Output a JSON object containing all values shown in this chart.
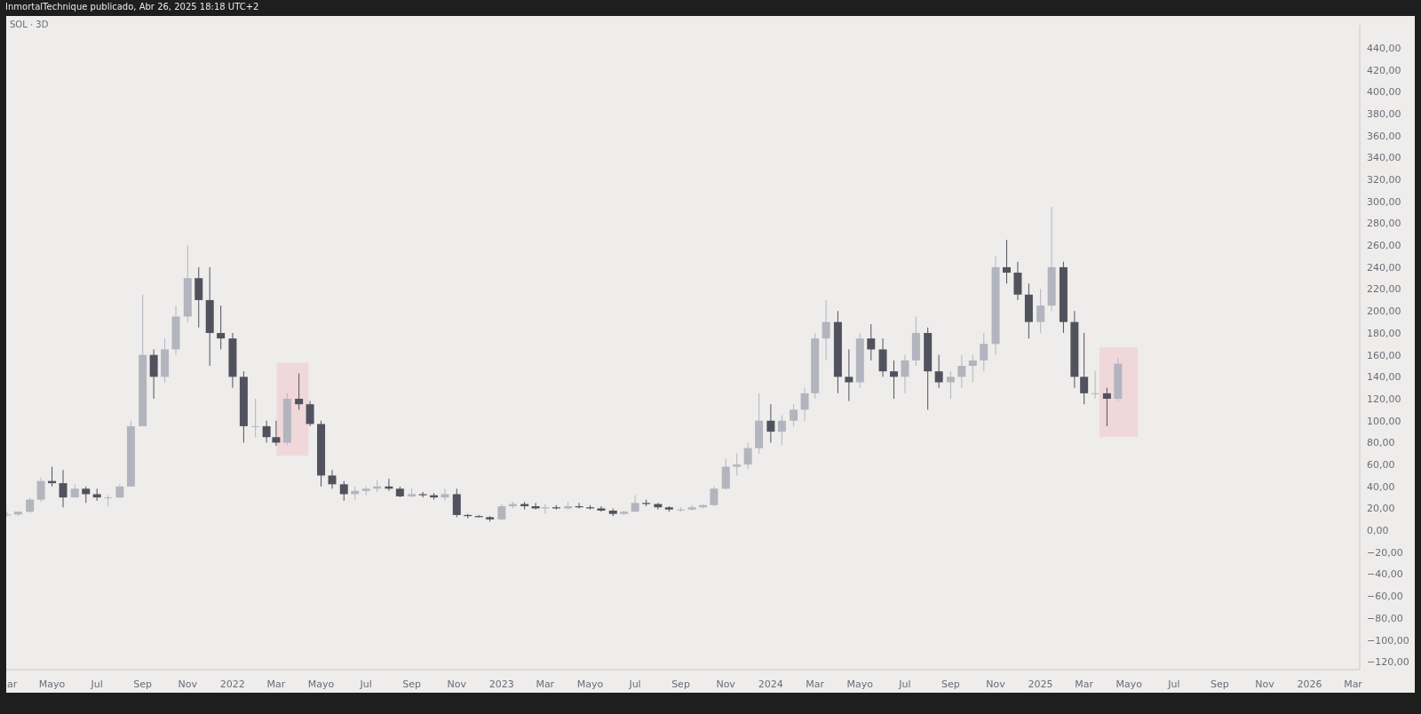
{
  "chart_data": {
    "type": "candlestick",
    "title": "SOL · 3D",
    "annotations": [
      "InmortalTechnique publicado, Abr 26, 2025 18:18 UTC+2"
    ],
    "x": [
      "2021-03-01",
      "2021-03-16",
      "2021-04-01",
      "2021-04-16",
      "2021-05-01",
      "2021-05-16",
      "2021-06-01",
      "2021-06-16",
      "2021-07-01",
      "2021-07-16",
      "2021-08-01",
      "2021-08-16",
      "2021-09-01",
      "2021-09-16",
      "2021-10-01",
      "2021-10-16",
      "2021-11-01",
      "2021-11-16",
      "2021-12-01",
      "2021-12-16",
      "2022-01-01",
      "2022-01-16",
      "2022-02-01",
      "2022-02-16",
      "2022-03-01",
      "2022-03-16",
      "2022-04-01",
      "2022-04-16",
      "2022-05-01",
      "2022-05-16",
      "2022-06-01",
      "2022-06-16",
      "2022-07-01",
      "2022-07-16",
      "2022-08-01",
      "2022-08-16",
      "2022-09-01",
      "2022-09-16",
      "2022-10-01",
      "2022-10-16",
      "2022-11-01",
      "2022-11-16",
      "2022-12-01",
      "2022-12-16",
      "2023-01-01",
      "2023-01-16",
      "2023-02-01",
      "2023-02-16",
      "2023-03-01",
      "2023-03-16",
      "2023-04-01",
      "2023-04-16",
      "2023-05-01",
      "2023-05-16",
      "2023-06-01",
      "2023-06-16",
      "2023-07-01",
      "2023-07-16",
      "2023-08-01",
      "2023-08-16",
      "2023-09-01",
      "2023-09-16",
      "2023-10-01",
      "2023-10-16",
      "2023-11-01",
      "2023-11-16",
      "2023-12-01",
      "2023-12-16",
      "2024-01-01",
      "2024-01-16",
      "2024-02-01",
      "2024-02-16",
      "2024-03-01",
      "2024-03-16",
      "2024-04-01",
      "2024-04-16",
      "2024-05-01",
      "2024-05-16",
      "2024-06-01",
      "2024-06-16",
      "2024-07-01",
      "2024-07-16",
      "2024-08-01",
      "2024-08-16",
      "2024-09-01",
      "2024-09-16",
      "2024-10-01",
      "2024-10-16",
      "2024-11-01",
      "2024-11-16",
      "2024-12-01",
      "2024-12-16",
      "2025-01-01",
      "2025-01-16",
      "2025-02-01",
      "2025-02-16",
      "2025-03-01",
      "2025-03-16",
      "2025-04-01",
      "2025-04-16"
    ],
    "ohlc": [
      [
        14,
        17,
        13,
        14.5
      ],
      [
        14.5,
        17,
        13,
        17
      ],
      [
        17,
        30,
        16,
        28
      ],
      [
        28,
        48,
        26,
        45
      ],
      [
        45,
        58,
        40,
        43
      ],
      [
        43,
        55,
        21,
        30
      ],
      [
        30,
        42,
        30,
        38
      ],
      [
        38,
        40,
        25,
        33
      ],
      [
        33,
        38,
        27,
        30
      ],
      [
        30,
        32,
        22,
        30
      ],
      [
        30,
        42,
        29,
        40
      ],
      [
        40,
        100,
        40,
        95
      ],
      [
        95,
        215,
        95,
        160
      ],
      [
        160,
        165,
        120,
        140
      ],
      [
        140,
        175,
        135,
        165
      ],
      [
        165,
        205,
        160,
        195
      ],
      [
        195,
        260,
        190,
        230
      ],
      [
        230,
        240,
        185,
        210
      ],
      [
        210,
        240,
        150,
        180
      ],
      [
        180,
        205,
        165,
        175
      ],
      [
        175,
        180,
        130,
        140
      ],
      [
        140,
        145,
        80,
        95
      ],
      [
        95,
        120,
        85,
        95
      ],
      [
        95,
        100,
        80,
        85
      ],
      [
        85,
        100,
        77,
        80
      ],
      [
        80,
        125,
        78,
        120
      ],
      [
        120,
        143,
        110,
        115
      ],
      [
        115,
        118,
        95,
        97
      ],
      [
        97,
        100,
        40,
        50
      ],
      [
        50,
        55,
        38,
        42
      ],
      [
        42,
        45,
        27,
        33
      ],
      [
        33,
        40,
        28,
        36
      ],
      [
        36,
        40,
        32,
        38
      ],
      [
        38,
        46,
        35,
        40
      ],
      [
        40,
        47,
        36,
        38
      ],
      [
        38,
        40,
        30,
        31
      ],
      [
        31,
        38,
        30,
        33
      ],
      [
        33,
        35,
        30,
        32
      ],
      [
        32,
        34,
        28,
        30
      ],
      [
        30,
        38,
        27,
        33
      ],
      [
        33,
        38,
        12,
        14
      ],
      [
        14,
        15,
        11,
        13
      ],
      [
        13,
        14,
        12,
        12
      ],
      [
        12,
        13,
        8,
        10
      ],
      [
        10,
        24,
        9,
        22
      ],
      [
        22,
        26,
        20,
        24
      ],
      [
        24,
        26,
        19,
        22
      ],
      [
        22,
        25,
        19,
        20
      ],
      [
        20,
        24,
        15,
        21
      ],
      [
        21,
        23,
        19,
        20
      ],
      [
        20,
        26,
        19,
        22
      ],
      [
        22,
        25,
        20,
        21
      ],
      [
        21,
        23,
        19,
        20
      ],
      [
        20,
        22,
        17,
        18
      ],
      [
        18,
        20,
        13,
        15
      ],
      [
        15,
        18,
        14,
        17
      ],
      [
        17,
        32,
        17,
        25
      ],
      [
        25,
        28,
        22,
        24
      ],
      [
        24,
        25,
        19,
        21
      ],
      [
        21,
        22,
        17,
        19
      ],
      [
        19,
        21,
        17,
        19
      ],
      [
        19,
        23,
        18,
        21
      ],
      [
        21,
        24,
        20,
        23
      ],
      [
        23,
        40,
        22,
        38
      ],
      [
        38,
        65,
        37,
        58
      ],
      [
        58,
        70,
        50,
        60
      ],
      [
        60,
        80,
        56,
        75
      ],
      [
        75,
        125,
        70,
        100
      ],
      [
        100,
        115,
        80,
        90
      ],
      [
        90,
        105,
        78,
        100
      ],
      [
        100,
        115,
        95,
        110
      ],
      [
        110,
        130,
        100,
        125
      ],
      [
        125,
        180,
        120,
        175
      ],
      [
        175,
        210,
        155,
        190
      ],
      [
        190,
        200,
        125,
        140
      ],
      [
        140,
        165,
        118,
        135
      ],
      [
        135,
        180,
        130,
        175
      ],
      [
        175,
        188,
        155,
        165
      ],
      [
        165,
        175,
        140,
        145
      ],
      [
        145,
        155,
        120,
        140
      ],
      [
        140,
        160,
        125,
        155
      ],
      [
        155,
        195,
        150,
        180
      ],
      [
        180,
        185,
        110,
        145
      ],
      [
        145,
        160,
        130,
        135
      ],
      [
        135,
        145,
        120,
        140
      ],
      [
        140,
        160,
        130,
        150
      ],
      [
        150,
        160,
        135,
        155
      ],
      [
        155,
        180,
        145,
        170
      ],
      [
        170,
        250,
        160,
        240
      ],
      [
        240,
        265,
        225,
        235
      ],
      [
        235,
        245,
        210,
        215
      ],
      [
        215,
        225,
        175,
        190
      ],
      [
        190,
        220,
        180,
        205
      ],
      [
        205,
        295,
        200,
        240
      ],
      [
        240,
        245,
        180,
        190
      ],
      [
        190,
        200,
        130,
        140
      ],
      [
        140,
        180,
        115,
        125
      ],
      [
        125,
        145,
        120,
        125
      ],
      [
        125,
        130,
        95,
        120
      ],
      [
        120,
        157,
        118,
        152
      ]
    ],
    "colors": [
      "#b2b5be",
      "#b2b5be",
      "#b2b5be",
      "#b2b5be",
      "#50535e",
      "#50535e",
      "#b2b5be",
      "#50535e",
      "#50535e",
      "#b2b5be",
      "#b2b5be",
      "#b2b5be",
      "#b2b5be",
      "#50535e",
      "#b2b5be",
      "#b2b5be",
      "#b2b5be",
      "#50535e",
      "#50535e",
      "#50535e",
      "#50535e",
      "#50535e",
      "#b2b5be",
      "#50535e",
      "#50535e",
      "#b2b5be",
      "#50535e",
      "#50535e",
      "#50535e",
      "#50535e",
      "#50535e",
      "#b2b5be",
      "#b2b5be",
      "#b2b5be",
      "#50535e",
      "#50535e",
      "#b2b5be",
      "#50535e",
      "#50535e",
      "#b2b5be",
      "#50535e",
      "#50535e",
      "#50535e",
      "#50535e",
      "#b2b5be",
      "#b2b5be",
      "#50535e",
      "#50535e",
      "#b2b5be",
      "#50535e",
      "#b2b5be",
      "#50535e",
      "#50535e",
      "#50535e",
      "#50535e",
      "#b2b5be",
      "#b2b5be",
      "#50535e",
      "#50535e",
      "#50535e",
      "#b2b5be",
      "#b2b5be",
      "#b2b5be",
      "#b2b5be",
      "#b2b5be",
      "#b2b5be",
      "#b2b5be",
      "#b2b5be",
      "#50535e",
      "#b2b5be",
      "#b2b5be",
      "#b2b5be",
      "#b2b5be",
      "#b2b5be",
      "#50535e",
      "#50535e",
      "#b2b5be",
      "#50535e",
      "#50535e",
      "#50535e",
      "#b2b5be",
      "#b2b5be",
      "#50535e",
      "#50535e",
      "#b2b5be",
      "#b2b5be",
      "#b2b5be",
      "#b2b5be",
      "#b2b5be",
      "#50535e",
      "#50535e",
      "#50535e",
      "#b2b5be",
      "#b2b5be",
      "#50535e",
      "#50535e",
      "#50535e",
      "#b2b5be",
      "#50535e",
      "#b2b5be"
    ],
    "xlim": [
      "2021-02-28",
      "2026-03-10"
    ],
    "xticks": [
      {
        "value": "2021-03-01",
        "label": "ar"
      },
      {
        "value": "2021-05-01",
        "label": "Mayo"
      },
      {
        "value": "2021-07-01",
        "label": "Jul"
      },
      {
        "value": "2021-09-01",
        "label": "Sep"
      },
      {
        "value": "2021-11-01",
        "label": "Nov"
      },
      {
        "value": "2022-01-01",
        "label": "2022"
      },
      {
        "value": "2022-03-01",
        "label": "Mar"
      },
      {
        "value": "2022-05-01",
        "label": "Mayo"
      },
      {
        "value": "2022-07-01",
        "label": "Jul"
      },
      {
        "value": "2022-09-01",
        "label": "Sep"
      },
      {
        "value": "2022-11-01",
        "label": "Nov"
      },
      {
        "value": "2023-01-01",
        "label": "2023"
      },
      {
        "value": "2023-03-01",
        "label": "Mar"
      },
      {
        "value": "2023-05-01",
        "label": "Mayo"
      },
      {
        "value": "2023-07-01",
        "label": "Jul"
      },
      {
        "value": "2023-09-01",
        "label": "Sep"
      },
      {
        "value": "2023-11-01",
        "label": "Nov"
      },
      {
        "value": "2024-01-01",
        "label": "2024"
      },
      {
        "value": "2024-03-01",
        "label": "Mar"
      },
      {
        "value": "2024-05-01",
        "label": "Mayo"
      },
      {
        "value": "2024-07-01",
        "label": "Jul"
      },
      {
        "value": "2024-09-01",
        "label": "Sep"
      },
      {
        "value": "2024-11-01",
        "label": "Nov"
      },
      {
        "value": "2025-01-01",
        "label": "2025"
      },
      {
        "value": "2025-03-01",
        "label": "Mar"
      },
      {
        "value": "2025-05-01",
        "label": "Mayo"
      },
      {
        "value": "2025-07-01",
        "label": "Jul"
      },
      {
        "value": "2025-09-01",
        "label": "Sep"
      },
      {
        "value": "2025-11-01",
        "label": "Nov"
      },
      {
        "value": "2026-01-01",
        "label": "2026"
      },
      {
        "value": "2026-03-01",
        "label": "Mar"
      }
    ],
    "ylim": [
      -127,
      461
    ],
    "yticks": [
      {
        "value": 440,
        "label": "440,00"
      },
      {
        "value": 420,
        "label": "420,00"
      },
      {
        "value": 400,
        "label": "400,00"
      },
      {
        "value": 380,
        "label": "380,00"
      },
      {
        "value": 360,
        "label": "360,00"
      },
      {
        "value": 340,
        "label": "340,00"
      },
      {
        "value": 320,
        "label": "320,00"
      },
      {
        "value": 300,
        "label": "300,00"
      },
      {
        "value": 280,
        "label": "280,00"
      },
      {
        "value": 260,
        "label": "260,00"
      },
      {
        "value": 240,
        "label": "240,00"
      },
      {
        "value": 220,
        "label": "220,00"
      },
      {
        "value": 200,
        "label": "200,00"
      },
      {
        "value": 180,
        "label": "180,00"
      },
      {
        "value": 160,
        "label": "160,00"
      },
      {
        "value": 140,
        "label": "140,00"
      },
      {
        "value": 120,
        "label": "120,00"
      },
      {
        "value": 100,
        "label": "100,00"
      },
      {
        "value": 80,
        "label": "80,00"
      },
      {
        "value": 60,
        "label": "60,00"
      },
      {
        "value": 40,
        "label": "40,00"
      },
      {
        "value": 20,
        "label": "20,00"
      },
      {
        "value": 0,
        "label": "0,00"
      },
      {
        "value": -20,
        "label": "−20,00"
      },
      {
        "value": -40,
        "label": "−40,00"
      },
      {
        "value": -60,
        "label": "−60,00"
      },
      {
        "value": -80,
        "label": "−80,00"
      },
      {
        "value": -100,
        "label": "−100,00"
      },
      {
        "value": -120,
        "label": "−120,00"
      }
    ],
    "bands": [
      {
        "axis": "x",
        "from": "2022-03-02",
        "to": "2022-04-14",
        "color": "#f0d2d7"
      },
      {
        "axis": "x",
        "from": "2025-03-22",
        "to": "2025-05-13",
        "color": "#f0d2d7"
      }
    ]
  }
}
